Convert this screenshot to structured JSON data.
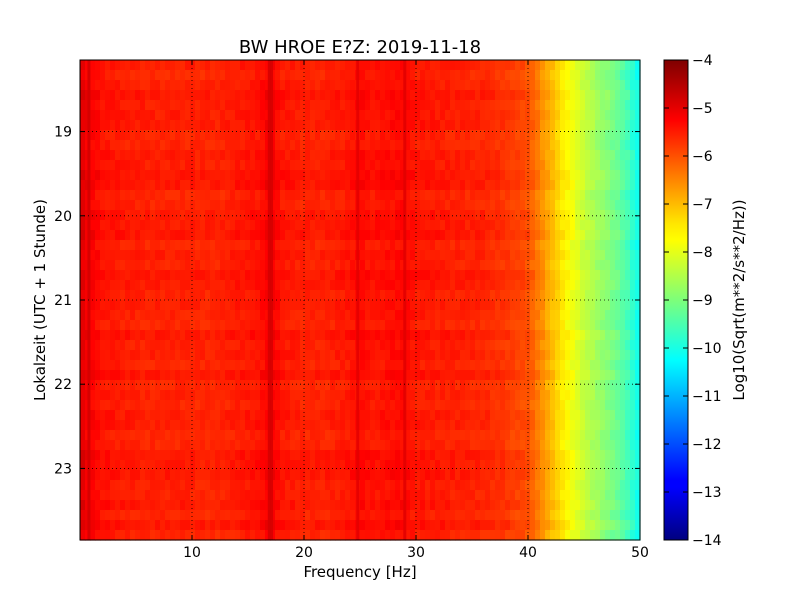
{
  "chart_data": {
    "type": "heatmap",
    "title": "BW HROE E?Z: 2019-11-18",
    "xlabel": "Frequency [Hz]",
    "ylabel": "Lokalzeit (UTC + 1 Stunde)",
    "xlim": [
      0,
      50
    ],
    "ylim": [
      23.85,
      18.15
    ],
    "x_ticks": [
      10,
      20,
      30,
      40,
      50
    ],
    "x_tick_labels": [
      "10",
      "20",
      "30",
      "40",
      "50"
    ],
    "y_ticks": [
      19,
      20,
      21,
      22,
      23
    ],
    "y_tick_labels": [
      "19",
      "20",
      "21",
      "22",
      "23"
    ],
    "grid": true,
    "colormap": "jet",
    "colorbar": {
      "label": "Log10(Sqrt(m**2/s**2/Hz))",
      "range": [
        -14,
        -4
      ],
      "ticks": [
        -4,
        -5,
        -6,
        -7,
        -8,
        -9,
        -10,
        -11,
        -12,
        -13,
        -14
      ],
      "tick_labels": [
        "−4",
        "−5",
        "−6",
        "−7",
        "−8",
        "−9",
        "−10",
        "−11",
        "−12",
        "−13",
        "−14"
      ]
    },
    "spectrum_profile": {
      "frequency_hz": [
        0,
        0.5,
        1,
        2,
        4,
        6,
        8,
        10,
        12,
        14,
        16,
        17,
        18,
        20,
        22,
        24,
        25,
        26,
        28,
        29,
        30,
        32,
        34,
        36,
        38,
        40,
        41,
        42,
        43,
        44,
        45,
        46,
        47,
        48,
        49,
        50
      ],
      "log10_amplitude": [
        -4.9,
        -5.1,
        -5.2,
        -5.4,
        -5.5,
        -5.55,
        -5.55,
        -5.55,
        -5.6,
        -5.5,
        -5.4,
        -5.15,
        -5.45,
        -5.55,
        -5.55,
        -5.45,
        -5.3,
        -5.45,
        -5.35,
        -5.3,
        -5.45,
        -5.5,
        -5.55,
        -5.6,
        -5.75,
        -6.0,
        -6.5,
        -7.0,
        -7.5,
        -7.9,
        -8.3,
        -8.6,
        -8.9,
        -9.2,
        -9.6,
        -10.2
      ]
    },
    "strong_lines_hz": [
      0.8,
      16.9,
      17.1,
      24.8,
      29.0
    ]
  }
}
